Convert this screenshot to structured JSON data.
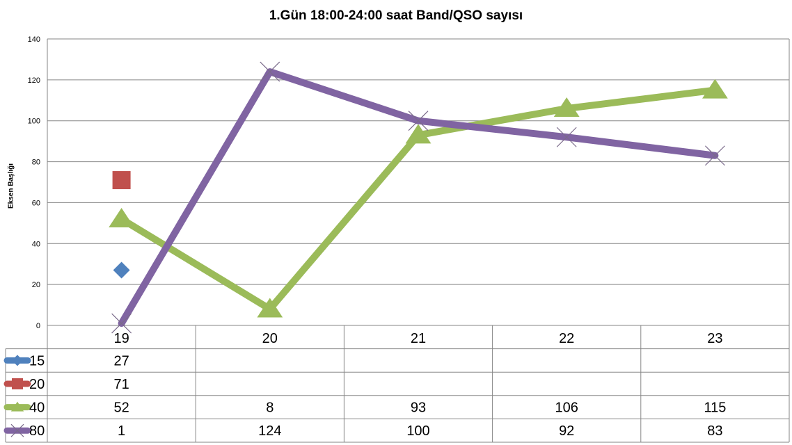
{
  "chart_data": {
    "type": "line",
    "title": "1.Gün 18:00-24:00 saat Band/QSO sayısı",
    "xlabel": "",
    "ylabel": "Eksen Başlığı",
    "categories": [
      "19",
      "20",
      "21",
      "22",
      "23"
    ],
    "ylim": [
      0,
      140
    ],
    "yticks": [
      0,
      20,
      40,
      60,
      80,
      100,
      120,
      140
    ],
    "grid": true,
    "legend": "data-table",
    "series": [
      {
        "name": "15",
        "color": "#4f81bd",
        "marker": "diamond",
        "values": [
          27,
          null,
          null,
          null,
          null
        ]
      },
      {
        "name": "20",
        "color": "#c0504d",
        "marker": "square",
        "values": [
          71,
          null,
          null,
          null,
          null
        ]
      },
      {
        "name": "40",
        "color": "#9bbb59",
        "marker": "triangle",
        "values": [
          52,
          8,
          93,
          106,
          115
        ]
      },
      {
        "name": "80",
        "color": "#8064a2",
        "marker": "x",
        "values": [
          1,
          124,
          100,
          92,
          83
        ]
      }
    ]
  }
}
